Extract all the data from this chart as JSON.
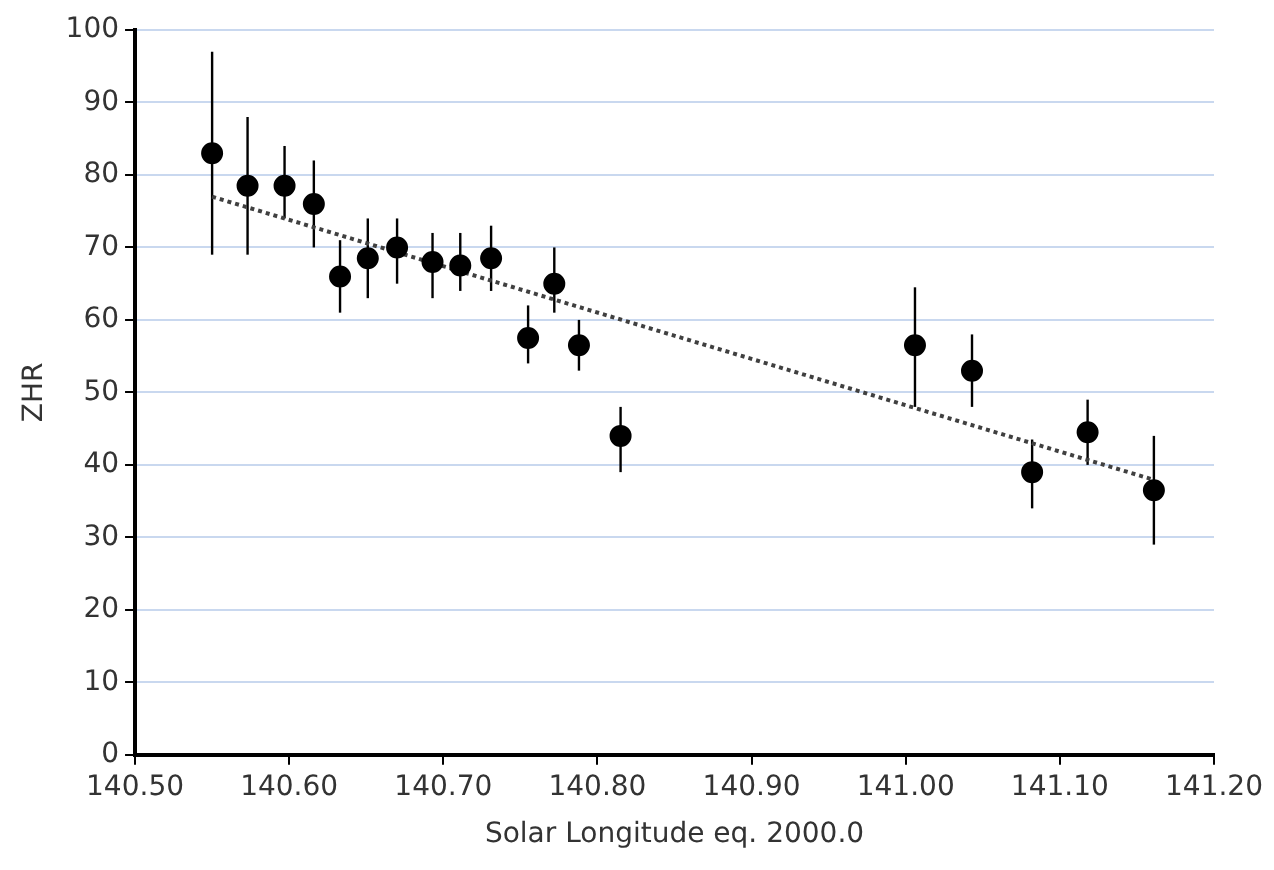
{
  "chart_data": {
    "type": "scatter",
    "xlabel": "Solar Longitude eq. 2000.0",
    "ylabel": "ZHR",
    "grid": "y",
    "xlim": [
      140.5,
      141.2
    ],
    "xticks": [
      {
        "value": 140.5,
        "label": "140.50"
      },
      {
        "value": 140.6,
        "label": "140.60"
      },
      {
        "value": 140.7,
        "label": "140.70"
      },
      {
        "value": 140.8,
        "label": "140.80"
      },
      {
        "value": 140.9,
        "label": "140.90"
      },
      {
        "value": 141.0,
        "label": "141.00"
      },
      {
        "value": 141.1,
        "label": "141.10"
      },
      {
        "value": 141.2,
        "label": "141.20"
      }
    ],
    "ylim": [
      0,
      100
    ],
    "yticks": [
      0,
      10,
      20,
      30,
      40,
      50,
      60,
      70,
      80,
      90,
      100
    ],
    "series": [
      {
        "color": "#000000",
        "marker": "circle",
        "x": [
          140.55,
          140.573,
          140.597,
          140.616,
          140.633,
          140.651,
          140.67,
          140.693,
          140.711,
          140.731,
          140.755,
          140.772,
          140.788,
          140.815,
          141.006,
          141.043,
          141.082,
          141.118,
          141.161
        ],
        "values": [
          83,
          78.5,
          78.5,
          76,
          66,
          68.5,
          70,
          68,
          67.5,
          68.5,
          57.5,
          65,
          56.5,
          44,
          56.5,
          53,
          39,
          44.5,
          36.5
        ],
        "errors": [
          [
            69,
            97
          ],
          [
            69,
            88
          ],
          [
            74,
            84
          ],
          [
            70,
            82
          ],
          [
            61,
            71
          ],
          [
            63,
            74
          ],
          [
            65,
            74
          ],
          [
            63,
            72
          ],
          [
            64,
            72
          ],
          [
            64,
            73
          ],
          [
            54,
            62
          ],
          [
            61,
            70
          ],
          [
            53,
            60
          ],
          [
            39,
            48
          ],
          [
            48,
            64.5
          ],
          [
            48,
            58
          ],
          [
            34,
            43.5
          ],
          [
            40,
            49
          ],
          [
            29,
            44
          ]
        ]
      },
      {
        "type": "line",
        "color": "#404040",
        "marker": "none",
        "line_style": "dotted",
        "x": [
          140.55,
          141.16
        ],
        "values": [
          77,
          38
        ]
      }
    ]
  }
}
